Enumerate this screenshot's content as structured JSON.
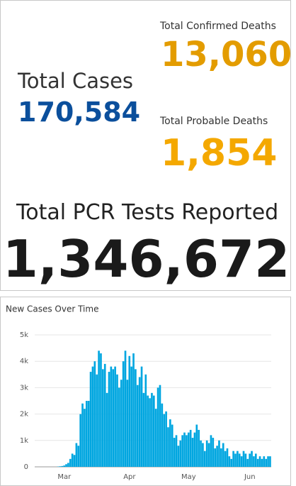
{
  "stats": {
    "total_cases": {
      "label": "Total Cases",
      "value": "170,584"
    },
    "confirmed_deaths": {
      "label": "Total Confirmed Deaths",
      "value": "13,060"
    },
    "probable_deaths": {
      "label": "Total Probable Deaths",
      "value": "1,854"
    },
    "pcr_tests": {
      "label": "Total PCR Tests Reported",
      "value": "1,346,672"
    }
  },
  "chart_data": {
    "type": "bar",
    "title": "New Cases Over Time",
    "color": "#00a6e0",
    "grid": true,
    "categories": [
      null,
      null,
      null,
      null,
      null,
      null,
      null,
      null,
      null,
      null,
      null,
      null,
      null,
      null,
      "Mar",
      null,
      null,
      null,
      null,
      null,
      null,
      null,
      null,
      null,
      null,
      null,
      null,
      null,
      null,
      null,
      null,
      null,
      null,
      null,
      null,
      null,
      null,
      null,
      null,
      null,
      null,
      null,
      null,
      null,
      null,
      null,
      "Apr",
      null,
      null,
      null,
      null,
      null,
      null,
      null,
      null,
      null,
      null,
      null,
      null,
      null,
      null,
      null,
      null,
      null,
      null,
      null,
      null,
      null,
      null,
      null,
      null,
      null,
      null,
      null,
      null,
      "May",
      null,
      null,
      null,
      null,
      null,
      null,
      null,
      null,
      null,
      null,
      null,
      null,
      null,
      null,
      null,
      null,
      null,
      null,
      null,
      null,
      null,
      null,
      null,
      null,
      null,
      null,
      null,
      null,
      null,
      "Jun",
      null,
      null,
      null,
      null,
      null,
      null,
      null,
      null,
      null,
      null
    ],
    "values": [
      0,
      0,
      0,
      0,
      0,
      0,
      0,
      0,
      0,
      0,
      0,
      10,
      20,
      30,
      50,
      100,
      150,
      300,
      500,
      450,
      900,
      800,
      2000,
      2400,
      2200,
      2500,
      2500,
      3600,
      3800,
      4000,
      3500,
      4400,
      4300,
      3700,
      3900,
      2800,
      3600,
      3800,
      3700,
      3800,
      3500,
      3000,
      3300,
      4000,
      4400,
      3300,
      4200,
      3800,
      4300,
      3700,
      3100,
      3400,
      3800,
      2800,
      3500,
      2700,
      2600,
      2800,
      2700,
      2200,
      3000,
      3100,
      2400,
      2000,
      2100,
      1500,
      1800,
      1600,
      1100,
      1200,
      800,
      1000,
      1200,
      1300,
      1200,
      1300,
      1400,
      1100,
      1300,
      1600,
      1400,
      1000,
      900,
      600,
      1000,
      900,
      1200,
      1100,
      700,
      800,
      1000,
      700,
      900,
      600,
      700,
      400,
      300,
      600,
      500,
      600,
      500,
      400,
      600,
      500,
      300,
      500,
      600,
      400,
      500,
      300,
      400,
      300,
      400,
      300,
      400,
      400
    ],
    "ylim": [
      0,
      5000
    ],
    "yticks": [
      0,
      {
        "value": 1000,
        "label": "1k"
      },
      {
        "value": 2000,
        "label": "2k"
      },
      {
        "value": 3000,
        "label": "3k"
      },
      {
        "value": 4000,
        "label": "4k"
      },
      {
        "value": 5000,
        "label": "5k"
      }
    ]
  }
}
